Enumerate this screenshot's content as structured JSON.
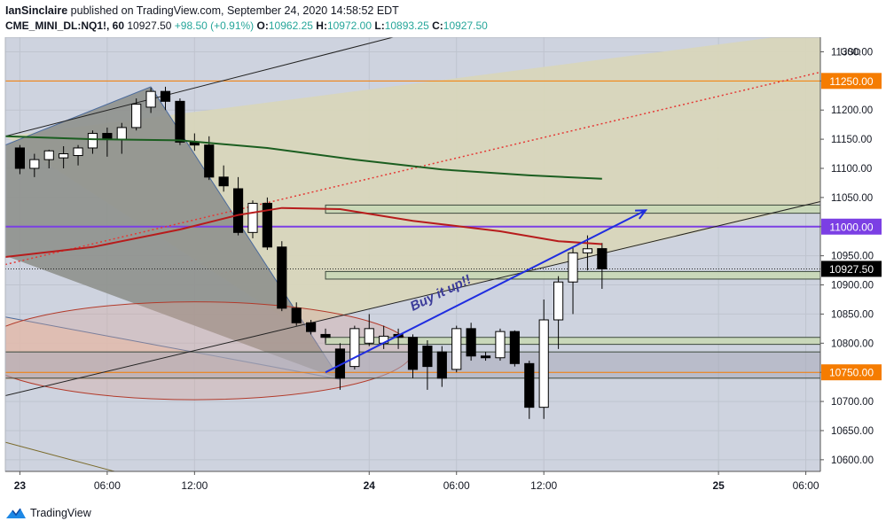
{
  "header": {
    "author": "IanSinclaire",
    "published_text": "published on TradingView.com, September 24, 2020 14:58:52 EDT",
    "symbol": "CME_MINI_DL:NQ1!, 60",
    "price": "10927.50",
    "change": "+98.50 (+0.91%)",
    "open_label": "O:",
    "open": "10962.25",
    "high_label": "H:",
    "high": "10972.00",
    "low_label": "L:",
    "low": "10893.25",
    "close_label": "C:",
    "close": "10927.50"
  },
  "axis": {
    "currency": "USD",
    "price_ticks": [
      "10600.00",
      "10650.00",
      "10700.00",
      "10750.00",
      "10800.00",
      "10850.00",
      "10900.00",
      "10950.00",
      "11000.00",
      "11050.00",
      "11100.00",
      "11150.00",
      "11200.00",
      "11250.00",
      "11300.00"
    ],
    "time_ticks": [
      "23",
      "06:00",
      "12:00",
      "24",
      "06:00",
      "12:00",
      "25",
      "06:00"
    ]
  },
  "tags": {
    "level_high": "11250.00",
    "level_mid": "11000.00",
    "current": "10927.50",
    "level_low": "10750.00"
  },
  "annotation": "Buy it up!!",
  "footer": {
    "brand": "TradingView"
  },
  "colors": {
    "up": "#26a69a",
    "orange_line": "#f57c00",
    "purple_line": "#7b3fe4",
    "ma_green": "#1b5e20",
    "ma_red": "#b71c1c",
    "arrow_blue": "#1f2de0",
    "annotation_text": "#3b3b9a",
    "tag_current": "#000000"
  },
  "chart_data": {
    "type": "candlestick",
    "y_unit": "USD",
    "ylim": [
      10580,
      11325
    ],
    "x_range": [
      "2020-09-22 23:00",
      "2020-09-25 07:00"
    ],
    "candles": [
      {
        "t": "2020-09-23 00:00",
        "o": 11135,
        "h": 11140,
        "l": 11090,
        "c": 11100
      },
      {
        "t": "2020-09-23 01:00",
        "o": 11100,
        "h": 11125,
        "l": 11085,
        "c": 11115
      },
      {
        "t": "2020-09-23 02:00",
        "o": 11115,
        "h": 11132,
        "l": 11100,
        "c": 11130
      },
      {
        "t": "2020-09-23 03:00",
        "o": 11118,
        "h": 11138,
        "l": 11100,
        "c": 11125
      },
      {
        "t": "2020-09-23 04:00",
        "o": 11122,
        "h": 11140,
        "l": 11105,
        "c": 11135
      },
      {
        "t": "2020-09-23 05:00",
        "o": 11135,
        "h": 11165,
        "l": 11125,
        "c": 11160
      },
      {
        "t": "2020-09-23 06:00",
        "o": 11160,
        "h": 11170,
        "l": 11120,
        "c": 11150
      },
      {
        "t": "2020-09-23 07:00",
        "o": 11150,
        "h": 11178,
        "l": 11125,
        "c": 11170
      },
      {
        "t": "2020-09-23 08:00",
        "o": 11170,
        "h": 11220,
        "l": 11165,
        "c": 11210
      },
      {
        "t": "2020-09-23 09:00",
        "o": 11205,
        "h": 11238,
        "l": 11195,
        "c": 11232
      },
      {
        "t": "2020-09-23 10:00",
        "o": 11232,
        "h": 11240,
        "l": 11200,
        "c": 11215
      },
      {
        "t": "2020-09-23 11:00",
        "o": 11215,
        "h": 11220,
        "l": 11140,
        "c": 11145
      },
      {
        "t": "2020-09-23 12:00",
        "o": 11145,
        "h": 11160,
        "l": 11130,
        "c": 11140
      },
      {
        "t": "2020-09-23 13:00",
        "o": 11140,
        "h": 11155,
        "l": 11080,
        "c": 11085
      },
      {
        "t": "2020-09-23 14:00",
        "o": 11085,
        "h": 11105,
        "l": 11060,
        "c": 11070
      },
      {
        "t": "2020-09-23 15:00",
        "o": 11065,
        "h": 11085,
        "l": 10985,
        "c": 10990
      },
      {
        "t": "2020-09-23 16:00",
        "o": 10990,
        "h": 11045,
        "l": 10980,
        "c": 11040
      },
      {
        "t": "2020-09-23 17:00",
        "o": 11040,
        "h": 11050,
        "l": 10960,
        "c": 10965
      },
      {
        "t": "2020-09-23 18:00",
        "o": 10965,
        "h": 10975,
        "l": 10855,
        "c": 10860
      },
      {
        "t": "2020-09-23 19:00",
        "o": 10860,
        "h": 10870,
        "l": 10830,
        "c": 10835
      },
      {
        "t": "2020-09-23 20:00",
        "o": 10835,
        "h": 10840,
        "l": 10815,
        "c": 10820
      },
      {
        "t": "2020-09-23 21:00",
        "o": 10815,
        "h": 10825,
        "l": 10800,
        "c": 10810
      },
      {
        "t": "2020-09-23 22:00",
        "o": 10790,
        "h": 10800,
        "l": 10720,
        "c": 10740
      },
      {
        "t": "2020-09-23 23:00",
        "o": 10760,
        "h": 10830,
        "l": 10755,
        "c": 10825
      },
      {
        "t": "2020-09-24 00:00",
        "o": 10800,
        "h": 10850,
        "l": 10795,
        "c": 10825
      },
      {
        "t": "2020-09-24 01:00",
        "o": 10800,
        "h": 10830,
        "l": 10790,
        "c": 10812
      },
      {
        "t": "2020-09-24 02:00",
        "o": 10815,
        "h": 10825,
        "l": 10790,
        "c": 10810
      },
      {
        "t": "2020-09-24 03:00",
        "o": 10810,
        "h": 10815,
        "l": 10740,
        "c": 10755
      },
      {
        "t": "2020-09-24 04:00",
        "o": 10795,
        "h": 10805,
        "l": 10720,
        "c": 10760
      },
      {
        "t": "2020-09-24 05:00",
        "o": 10785,
        "h": 10795,
        "l": 10725,
        "c": 10740
      },
      {
        "t": "2020-09-24 06:00",
        "o": 10755,
        "h": 10830,
        "l": 10750,
        "c": 10825
      },
      {
        "t": "2020-09-24 07:00",
        "o": 10825,
        "h": 10835,
        "l": 10770,
        "c": 10778
      },
      {
        "t": "2020-09-24 08:00",
        "o": 10778,
        "h": 10785,
        "l": 10770,
        "c": 10775
      },
      {
        "t": "2020-09-24 09:00",
        "o": 10775,
        "h": 10825,
        "l": 10770,
        "c": 10820
      },
      {
        "t": "2020-09-24 10:00",
        "o": 10820,
        "h": 10822,
        "l": 10760,
        "c": 10765
      },
      {
        "t": "2020-09-24 11:00",
        "o": 10765,
        "h": 10770,
        "l": 10670,
        "c": 10690
      },
      {
        "t": "2020-09-24 12:00",
        "o": 10690,
        "h": 10875,
        "l": 10670,
        "c": 10840
      },
      {
        "t": "2020-09-24 13:00",
        "o": 10840,
        "h": 10915,
        "l": 10790,
        "c": 10905
      },
      {
        "t": "2020-09-24 14:00",
        "o": 10905,
        "h": 10965,
        "l": 10850,
        "c": 10955
      },
      {
        "t": "2020-09-24 15:00",
        "o": 10955,
        "h": 10985,
        "l": 10925,
        "c": 10962
      },
      {
        "t": "2020-09-24 16:00",
        "o": 10962.25,
        "h": 10972,
        "l": 10893.25,
        "c": 10927.5
      }
    ],
    "moving_averages": [
      {
        "color": "green",
        "points": [
          [
            "2020-09-22 23:00",
            11155
          ],
          [
            "2020-09-23 05:00",
            11150
          ],
          [
            "2020-09-23 11:00",
            11148
          ],
          [
            "2020-09-23 17:00",
            11135
          ],
          [
            "2020-09-23 23:00",
            11115
          ],
          [
            "2020-09-24 05:00",
            11098
          ],
          [
            "2020-09-24 11:00",
            11088
          ],
          [
            "2020-09-24 16:00",
            11082
          ]
        ]
      },
      {
        "color": "red",
        "points": [
          [
            "2020-09-22 23:00",
            10948
          ],
          [
            "2020-09-23 05:00",
            10965
          ],
          [
            "2020-09-23 11:00",
            10995
          ],
          [
            "2020-09-23 15:00",
            11020
          ],
          [
            "2020-09-23 18:00",
            11032
          ],
          [
            "2020-09-23 22:00",
            11030
          ],
          [
            "2020-09-24 03:00",
            11010
          ],
          [
            "2020-09-24 09:00",
            10992
          ],
          [
            "2020-09-24 13:00",
            10975
          ],
          [
            "2020-09-24 16:00",
            10970
          ]
        ]
      }
    ],
    "horizontal_levels": [
      11250,
      11000,
      10750,
      10927.5
    ],
    "zones": [
      {
        "from": 11023,
        "to": 11037
      },
      {
        "from": 10910,
        "to": 10923
      },
      {
        "from": 10798,
        "to": 10810
      },
      {
        "from": 10740,
        "to": 10785
      }
    ]
  }
}
